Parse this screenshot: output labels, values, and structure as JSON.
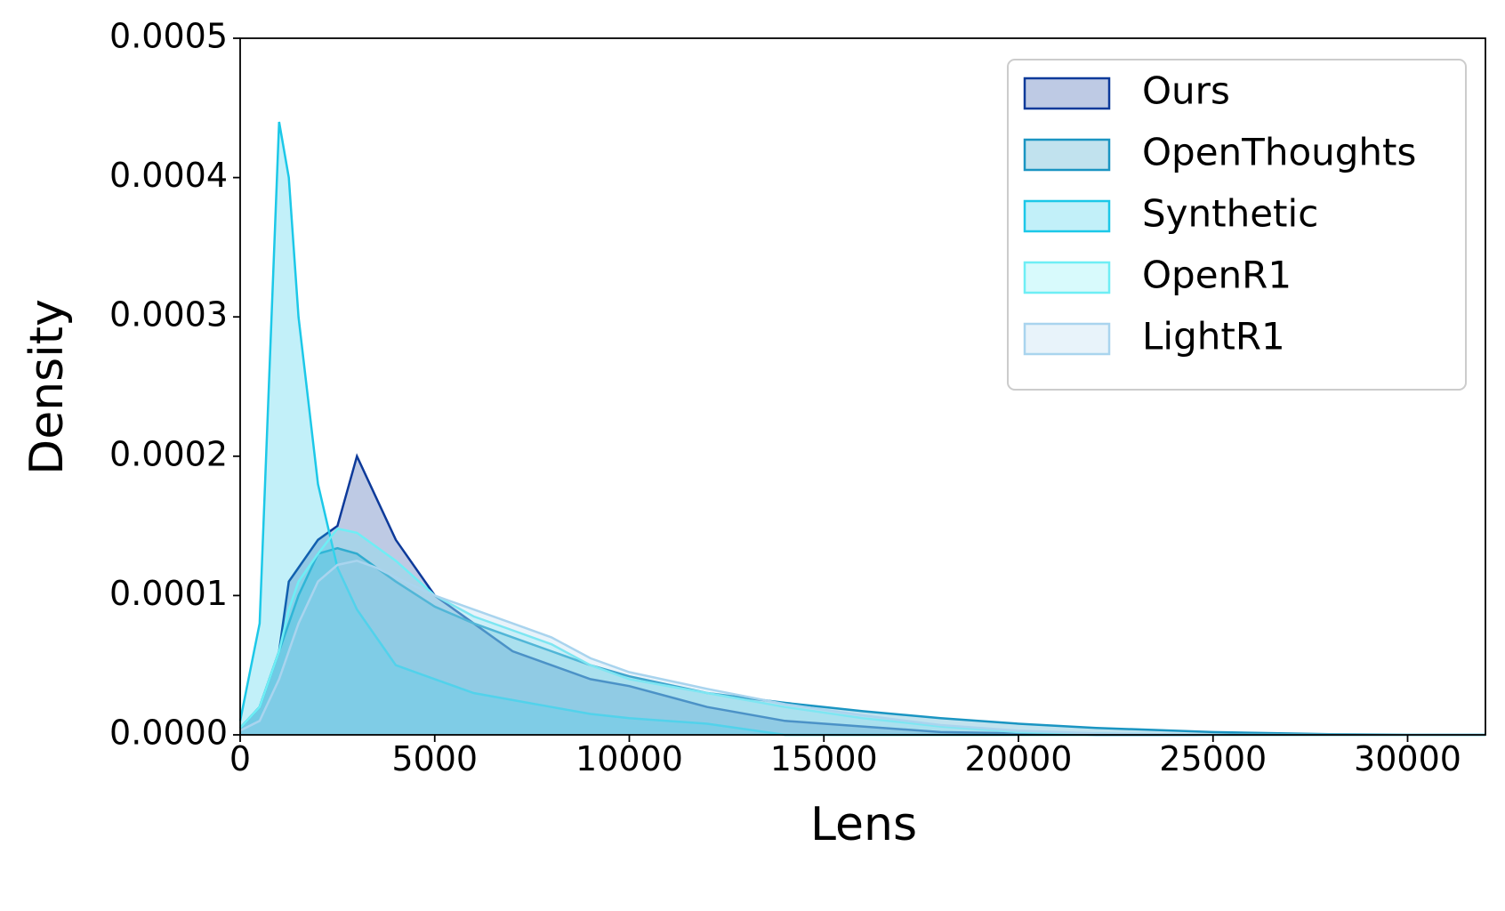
{
  "chart_data": {
    "type": "area",
    "x_label": "Lens",
    "y_label": "Density",
    "x": [
      0,
      500,
      1000,
      1250,
      1500,
      2000,
      2500,
      3000,
      3500,
      4000,
      5000,
      6000,
      7000,
      8000,
      9000,
      10000,
      12000,
      14000,
      16000,
      18000,
      20000,
      22000,
      25000,
      28000,
      30000,
      32000
    ],
    "series": [
      {
        "name": "Ours",
        "color": "#0d3a9a",
        "values": [
          5e-06,
          2e-05,
          6e-05,
          0.00011,
          0.00012,
          0.00014,
          0.00015,
          0.0002,
          0.00017,
          0.00014,
          0.0001,
          8e-05,
          6e-05,
          5e-05,
          4e-05,
          3.5e-05,
          2e-05,
          1e-05,
          6e-06,
          2e-06,
          1e-06,
          0,
          0,
          0,
          0,
          0
        ]
      },
      {
        "name": "OpenThoughts",
        "color": "#1a95c2",
        "values": [
          5e-06,
          2e-05,
          6e-05,
          8e-05,
          0.0001,
          0.00013,
          0.000134,
          0.00013,
          0.00012,
          0.00011,
          9.2e-05,
          8e-05,
          7e-05,
          6e-05,
          5e-05,
          4.2e-05,
          3e-05,
          2.3e-05,
          1.7e-05,
          1.2e-05,
          8e-06,
          5e-06,
          2e-06,
          5e-07,
          2e-07,
          0
        ]
      },
      {
        "name": "Synthetic",
        "color": "#1cc8e8",
        "values": [
          1e-05,
          8e-05,
          0.00044,
          0.0004,
          0.0003,
          0.00018,
          0.00012,
          9e-05,
          7e-05,
          5e-05,
          4e-05,
          3e-05,
          2.5e-05,
          2e-05,
          1.5e-05,
          1.2e-05,
          8e-06,
          0,
          0,
          0,
          0,
          0,
          0,
          0,
          0,
          0
        ]
      },
      {
        "name": "OpenR1",
        "color": "#6eeef5",
        "values": [
          5e-06,
          2e-05,
          6e-05,
          9e-05,
          0.00011,
          0.00013,
          0.000148,
          0.000145,
          0.000135,
          0.000125,
          0.0001,
          8.5e-05,
          7.5e-05,
          6.5e-05,
          5e-05,
          4e-05,
          3e-05,
          2e-05,
          1.2e-05,
          6e-06,
          2e-06,
          1e-06,
          0,
          0,
          0,
          0
        ]
      },
      {
        "name": "LightR1",
        "color": "#a9d4ee",
        "values": [
          3e-06,
          1e-05,
          4e-05,
          6e-05,
          8e-05,
          0.00011,
          0.000122,
          0.000125,
          0.00012,
          0.000113,
          0.0001,
          9e-05,
          8e-05,
          7e-05,
          5.5e-05,
          4.5e-05,
          3.3e-05,
          2.2e-05,
          1.4e-05,
          7e-06,
          3e-06,
          1e-06,
          0,
          0,
          0,
          0
        ]
      }
    ],
    "xlim": [
      0,
      32000
    ],
    "ylim": [
      0,
      0.0005
    ],
    "xticks": [
      0,
      5000,
      10000,
      15000,
      20000,
      25000,
      30000
    ],
    "yticks": [
      {
        "value": 0,
        "label": "0.0000"
      },
      {
        "value": 0.0001,
        "label": "0.0001"
      },
      {
        "value": 0.0002,
        "label": "0.0002"
      },
      {
        "value": 0.0003,
        "label": "0.0003"
      },
      {
        "value": 0.0004,
        "label": "0.0004"
      },
      {
        "value": 0.0005,
        "label": "0.0005"
      }
    ],
    "legend": "upper right",
    "grid": false
  }
}
